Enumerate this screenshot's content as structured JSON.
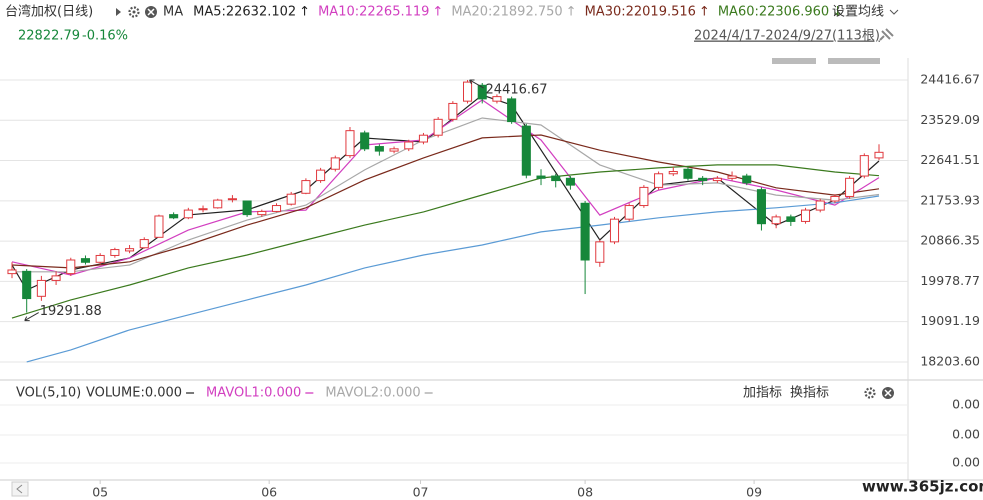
{
  "header": {
    "title": "台湾加权(日线)",
    "ma_label": "MA",
    "last": "22822.79",
    "change": "-0.16%",
    "range": "2024/4/17-2024/9/27(113根)",
    "setting": "设置均线"
  },
  "chart_data": {
    "type": "candlestick",
    "up_color": "#e0393e",
    "down_color": "#16873a",
    "xlim": [
      -0.5,
      59.5
    ],
    "xticks": [
      {
        "value": 6,
        "label": "05"
      },
      {
        "value": 17.5,
        "label": "06"
      },
      {
        "value": 27.8,
        "label": "07"
      },
      {
        "value": 39,
        "label": "08"
      },
      {
        "value": 50.5,
        "label": "09"
      }
    ],
    "ylim": [
      17850,
      24857
    ],
    "yticks": [
      24416.67,
      23529.09,
      22641.51,
      21753.93,
      20866.35,
      19978.77,
      19091.19,
      {
        "value": 18203.6,
        "label": "18203.60"
      }
    ],
    "grid": true,
    "candles": [
      [
        20150,
        20400,
        20050,
        20230
      ],
      [
        20200,
        20250,
        19291.88,
        19600
      ],
      [
        19650,
        20100,
        19550,
        20000
      ],
      [
        20000,
        20200,
        19900,
        20100
      ],
      [
        20150,
        20500,
        20100,
        20450
      ],
      [
        20480,
        20550,
        20350,
        20400
      ],
      [
        20400,
        20600,
        20350,
        20550
      ],
      [
        20550,
        20720,
        20500,
        20680
      ],
      [
        20650,
        20780,
        20600,
        20700
      ],
      [
        20720,
        20950,
        20700,
        20900
      ],
      [
        20950,
        21450,
        20950,
        21420
      ],
      [
        21450,
        21500,
        21350,
        21380
      ],
      [
        21380,
        21600,
        21350,
        21550
      ],
      [
        21560,
        21650,
        21500,
        21580
      ],
      [
        21600,
        21800,
        21580,
        21770
      ],
      [
        21780,
        21880,
        21720,
        21800
      ],
      [
        21750,
        21760,
        21400,
        21450
      ],
      [
        21450,
        21560,
        21400,
        21520
      ],
      [
        21520,
        21700,
        21500,
        21650
      ],
      [
        21680,
        21950,
        21650,
        21900
      ],
      [
        21920,
        22250,
        21900,
        22200
      ],
      [
        22200,
        22480,
        22150,
        22430
      ],
      [
        22450,
        22750,
        22400,
        22700
      ],
      [
        22750,
        23380,
        22700,
        23300
      ],
      [
        23250,
        23300,
        22850,
        22900
      ],
      [
        22950,
        23000,
        22750,
        22850
      ],
      [
        22850,
        22950,
        22800,
        22900
      ],
      [
        22900,
        23100,
        22850,
        23050
      ],
      [
        23050,
        23250,
        23000,
        23200
      ],
      [
        23200,
        23600,
        23150,
        23550
      ],
      [
        23550,
        23950,
        23500,
        23900
      ],
      [
        23950,
        24416.67,
        23900,
        24370
      ],
      [
        24300,
        24350,
        23900,
        24000
      ],
      [
        23950,
        24100,
        23900,
        24050
      ],
      [
        24000,
        24050,
        23450,
        23500
      ],
      [
        23400,
        23450,
        22250,
        22320
      ],
      [
        22300,
        22450,
        22100,
        22250
      ],
      [
        22300,
        22350,
        22050,
        22200
      ],
      [
        22250,
        22300,
        22000,
        22100
      ],
      [
        21700,
        21750,
        19700,
        20450
      ],
      [
        20400,
        20900,
        20300,
        20850
      ],
      [
        20850,
        21400,
        20800,
        21350
      ],
      [
        21350,
        21700,
        21300,
        21650
      ],
      [
        21650,
        22100,
        21600,
        22050
      ],
      [
        22050,
        22400,
        22000,
        22350
      ],
      [
        22350,
        22500,
        22300,
        22400
      ],
      [
        22450,
        22500,
        22200,
        22250
      ],
      [
        22250,
        22300,
        22100,
        22200
      ],
      [
        22200,
        22300,
        22150,
        22250
      ],
      [
        22250,
        22400,
        22200,
        22300
      ],
      [
        22300,
        22350,
        22100,
        22150
      ],
      [
        22000,
        22050,
        21100,
        21250
      ],
      [
        21250,
        21450,
        21150,
        21400
      ],
      [
        21400,
        21450,
        21200,
        21300
      ],
      [
        21300,
        21600,
        21250,
        21550
      ],
      [
        21550,
        21800,
        21500,
        21750
      ],
      [
        21750,
        21900,
        21700,
        21850
      ],
      [
        21850,
        22300,
        21800,
        22250
      ],
      [
        22300,
        22800,
        22250,
        22750
      ],
      [
        22700,
        23000,
        22650,
        22822.79
      ]
    ],
    "series": [
      {
        "name": "MA5:22632.102",
        "trend": "↑",
        "color": "#222222",
        "x": [
          0,
          1,
          4,
          8,
          12,
          16,
          20,
          24,
          28,
          32,
          34,
          36,
          40,
          44,
          48,
          52,
          56,
          59
        ],
        "values": [
          20341,
          19790,
          20231,
          20495,
          21443,
          21553,
          21993,
          23139,
          23051,
          24086,
          23866,
          22875,
          20892,
          22104,
          22258,
          21222,
          21773,
          22632.102
        ]
      },
      {
        "name": "MA10:22265.119",
        "trend": "↑",
        "color": "#d23fc0",
        "x": [
          0,
          4,
          8,
          12,
          16,
          20,
          24,
          28,
          32,
          36,
          40,
          44,
          48,
          52,
          56,
          59
        ],
        "values": [
          20410,
          20120,
          20495,
          21110,
          21510,
          21550,
          22985,
          23095,
          23975,
          23095,
          21440,
          21990,
          22260,
          21993,
          21660,
          22265.119
        ]
      },
      {
        "name": "MA20:21892.750",
        "trend": "↑",
        "color": "#a8a8a8",
        "x": [
          0,
          4,
          8,
          12,
          16,
          20,
          24,
          28,
          32,
          36,
          40,
          44,
          48,
          52,
          56,
          59
        ],
        "values": [
          20190,
          20190,
          20340,
          20890,
          21330,
          21660,
          22435,
          23095,
          23580,
          23425,
          22545,
          22100,
          22150,
          21880,
          21770,
          21892.75
        ]
      },
      {
        "name": "MA30:22019.516",
        "trend": "↑",
        "color": "#7a2a1c",
        "x": [
          0,
          4,
          8,
          12,
          16,
          20,
          24,
          28,
          32,
          36,
          40,
          44,
          48,
          52,
          56,
          59
        ],
        "values": [
          20340,
          20275,
          20410,
          20780,
          21220,
          21600,
          22215,
          22700,
          23140,
          23205,
          22870,
          22610,
          22390,
          22040,
          21880,
          22019.516
        ]
      },
      {
        "name": "MA60:22306.960",
        "trend": "↓",
        "color": "#3b7a1e",
        "x": [
          0,
          4,
          8,
          12,
          16,
          20,
          24,
          28,
          32,
          36,
          40,
          44,
          48,
          52,
          56,
          59
        ],
        "values": [
          19170,
          19570,
          19900,
          20275,
          20560,
          20890,
          21220,
          21510,
          21883,
          22258,
          22390,
          22480,
          22545,
          22545,
          22390,
          22306.96
        ]
      },
      {
        "color": "#5b9bd5",
        "x": [
          0,
          1,
          4,
          8,
          12,
          16,
          20,
          24,
          28,
          32,
          36,
          40,
          44,
          48,
          52,
          56,
          59
        ],
        "values": [
          null,
          18205,
          18470,
          18910,
          19240,
          19570,
          19900,
          20275,
          20560,
          20780,
          21070,
          21220,
          21380,
          21510,
          21600,
          21710,
          21860
        ]
      }
    ]
  },
  "volume_panel": {
    "title": "VOL(5,10)",
    "items": [
      "VOLUME:0.000",
      "MAVOL1:0.000",
      "MAVOL2:0.000"
    ],
    "buttons": [
      "加指标",
      "换指标"
    ],
    "yticks": [
      "0.00",
      "0.00",
      "0.00"
    ]
  },
  "watermark": "www.365jz.com"
}
